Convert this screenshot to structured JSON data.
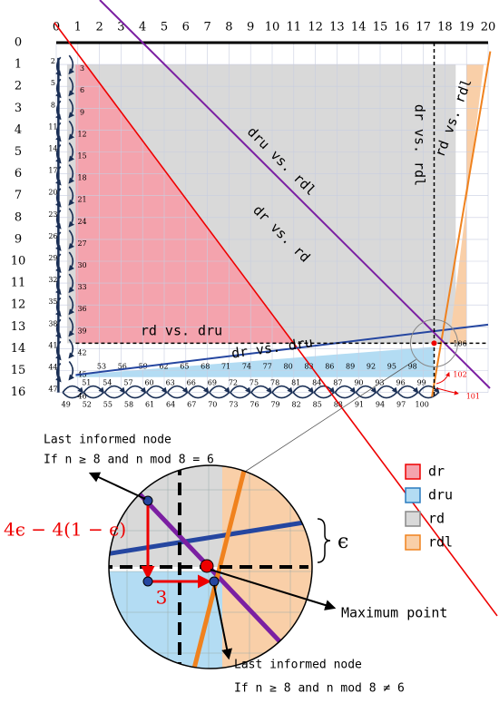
{
  "grid": {
    "column_labels": [
      "0",
      "1",
      "2",
      "3",
      "4",
      "5",
      "6",
      "7",
      "8",
      "9",
      "10",
      "11",
      "12",
      "13",
      "14",
      "15",
      "16",
      "17",
      "18",
      "19",
      "20"
    ],
    "row_labels": [
      "0",
      "1",
      "2",
      "3",
      "4",
      "5",
      "6",
      "7",
      "8",
      "9",
      "10",
      "11",
      "12",
      "13",
      "14",
      "15",
      "16"
    ]
  },
  "node_labels": {
    "left": [
      "2",
      "5",
      "8",
      "11",
      "14",
      "17",
      "20",
      "23",
      "26",
      "29",
      "32",
      "35",
      "38",
      "41",
      "44",
      "47"
    ],
    "right": [
      "3",
      "6",
      "9",
      "12",
      "15",
      "18",
      "21",
      "24",
      "27",
      "30",
      "33",
      "36",
      "39",
      "42",
      "45",
      "46"
    ],
    "row15": [
      "53",
      "56",
      "59",
      "62",
      "65",
      "68",
      "71",
      "74",
      "77",
      "80",
      "83",
      "86",
      "89",
      "92",
      "95",
      "98"
    ],
    "row16": [
      "51",
      "54",
      "57",
      "60",
      "63",
      "66",
      "69",
      "72",
      "75",
      "78",
      "81",
      "84",
      "87",
      "90",
      "93",
      "96",
      "99"
    ],
    "below": [
      "49",
      "52",
      "55",
      "58",
      "61",
      "64",
      "67",
      "70",
      "73",
      "76",
      "79",
      "82",
      "85",
      "88",
      "91",
      "94",
      "97",
      "100"
    ],
    "extra": [
      "106",
      "102",
      "101"
    ]
  },
  "line_labels": {
    "dru_rdl": "dru vs. rdl",
    "dr_rd": "dr vs. rd",
    "rd_dru": "rd vs. dru",
    "dr_dru": "dr vs. dru",
    "dr_rdl": "dr vs. rdl",
    "rd_rdl": "rd vs. rdl"
  },
  "legend": [
    {
      "name": "dr",
      "color": "#f4a3ad"
    },
    {
      "name": "dru",
      "color": "#b3dcf3"
    },
    {
      "name": "rd",
      "color": "#d9d9d9"
    },
    {
      "name": "rdl",
      "color": "#f9cfa8"
    }
  ],
  "inset": {
    "top_note": "Last informed node",
    "top_condition": "If n ≥ 8 and n mod 8 = 6",
    "vertical_measure": "4ϵ − 4(1 − ϵ)",
    "horizontal_measure": "3",
    "epsilon": "ϵ",
    "maximum": "Maximum point",
    "bottom_note": "Last informed node",
    "bottom_condition": "If n ≥ 8 and n mod 8 ≠ 6"
  }
}
